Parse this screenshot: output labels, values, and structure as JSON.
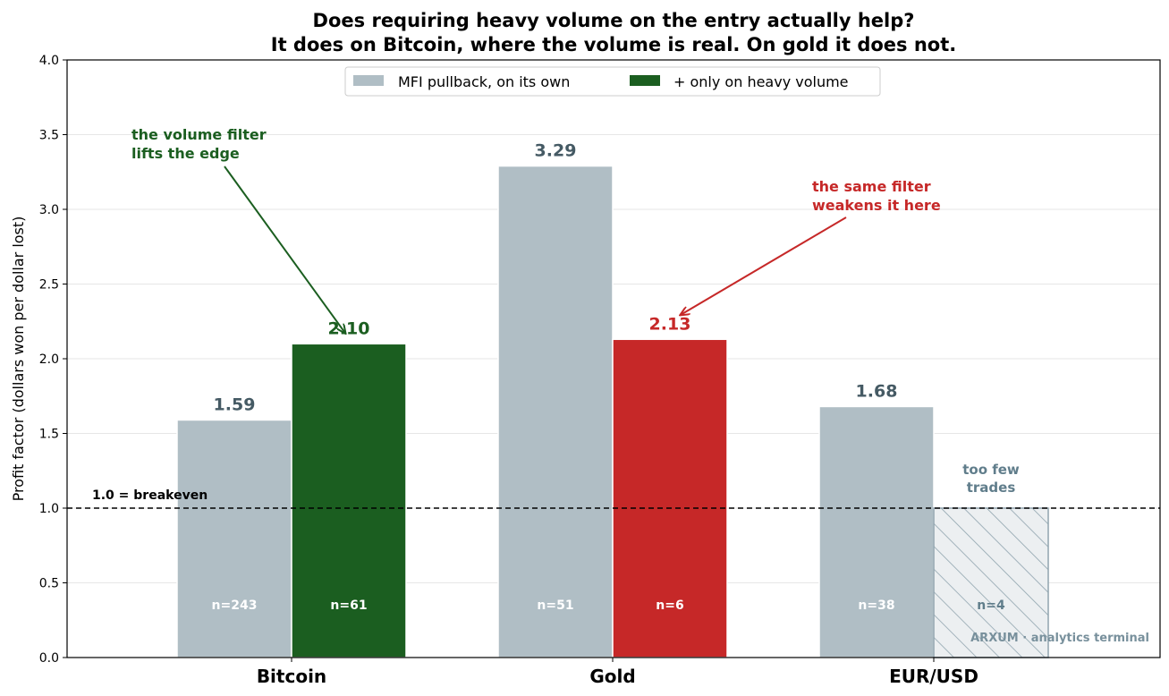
{
  "chart_data": {
    "type": "bar",
    "title": "Does requiring heavy volume on the entry actually help?",
    "subtitle": "It does on Bitcoin, where the volume is real. On gold it does not.",
    "ylabel": "Profit factor (dollars won per dollar lost)",
    "xlabel": "",
    "ylim": [
      0,
      4.0
    ],
    "yticks": [
      "0.0",
      "0.5",
      "1.0",
      "1.5",
      "2.0",
      "2.5",
      "3.0",
      "3.5",
      "4.0"
    ],
    "grid": "horizontal",
    "legend_position": "top-center",
    "categories": [
      "Bitcoin",
      "Gold",
      "EUR/USD"
    ],
    "series": [
      {
        "name": "MFI pullback, on its own",
        "color": "#b0bec5",
        "values": [
          1.59,
          3.29,
          1.68
        ],
        "value_labels": [
          "1.59",
          "3.29",
          "1.68"
        ],
        "n_labels": [
          "n=243",
          "n=51",
          "n=38"
        ]
      },
      {
        "name": "+ only on heavy volume",
        "color": "#1b5e20",
        "values": [
          2.1,
          2.13,
          1.0
        ],
        "value_labels": [
          "2.10",
          "2.13",
          ""
        ],
        "n_labels": [
          "n=61",
          "n=6",
          "n=4"
        ],
        "point_colors": [
          "#1b5e20",
          "#c62828",
          "#eceff1"
        ],
        "label_colors": [
          "#1b5e20",
          "#c62828",
          "#455a64"
        ]
      }
    ],
    "reference_line": {
      "value": 1.0,
      "label": "1.0 = breakeven"
    },
    "annotations": [
      {
        "text_lines": [
          "the volume filter",
          "lifts the edge"
        ],
        "color": "#1b5e20",
        "target_category": "Bitcoin",
        "target_value": 2.1
      },
      {
        "text_lines": [
          "the same filter",
          "weakens it here"
        ],
        "color": "#c62828",
        "target_category": "Gold",
        "target_value": 2.3
      },
      {
        "text_lines": [
          "too few",
          "trades"
        ],
        "color": "#607d8b",
        "target_category": "EUR/USD",
        "target_value": 1.0
      }
    ],
    "watermark": "ARXUM · analytics terminal"
  }
}
